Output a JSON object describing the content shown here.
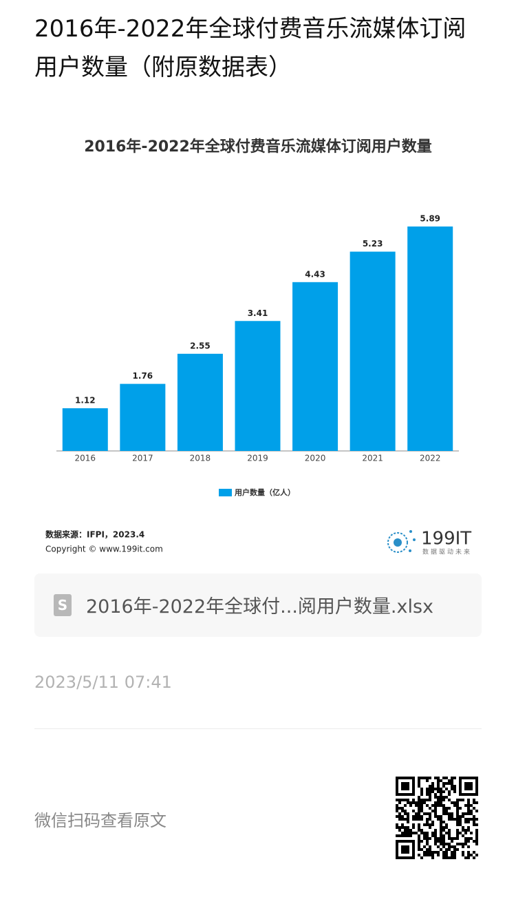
{
  "article": {
    "title": "2016年-2022年全球付费音乐流媒体订阅用户数量（附原数据表）"
  },
  "chart_data": {
    "type": "bar",
    "title": "2016年-2022年全球付费音乐流媒体订阅用户数量",
    "categories": [
      "2016",
      "2017",
      "2018",
      "2019",
      "2020",
      "2021",
      "2022"
    ],
    "series": [
      {
        "name": "用户数量（亿人）",
        "color": "#00a0e9",
        "values": [
          1.12,
          1.76,
          2.55,
          3.41,
          4.43,
          5.23,
          5.89
        ]
      }
    ],
    "legend": "bottom",
    "source": "数据来源：IFPI，2023.4",
    "copyright": "Copyright © www.199it.com",
    "logo": {
      "name": "199IT",
      "slogan": "数据驱动未来"
    }
  },
  "attachment": {
    "filename": "2016年-2022年全球付...阅用户数量.xlsx"
  },
  "date": "2023/5/11 07:41",
  "footer": {
    "scan_text": "微信扫码查看原文"
  }
}
